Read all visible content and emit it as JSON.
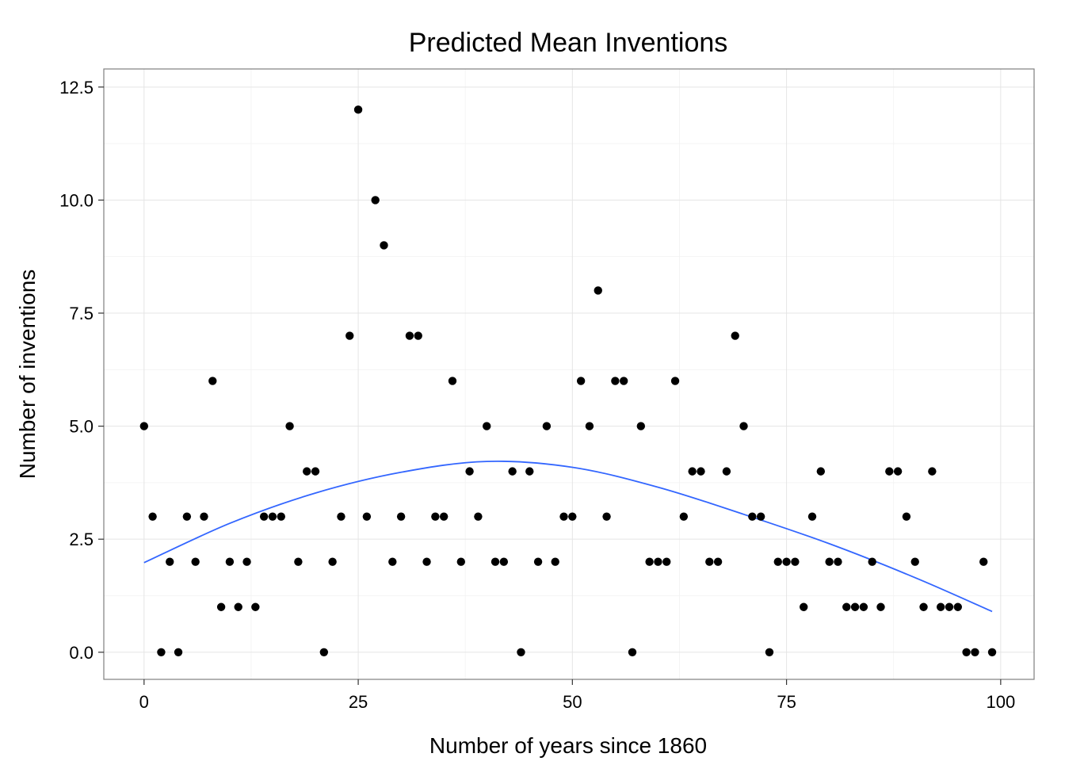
{
  "chart_data": {
    "type": "scatter",
    "title": "Predicted Mean Inventions",
    "xlabel": "Number of years since 1860",
    "ylabel": "Number of inventions",
    "xlim": [
      -4.7,
      103.9
    ],
    "ylim": [
      -0.6,
      12.9
    ],
    "xticks": [
      0,
      25,
      50,
      75,
      100
    ],
    "xtick_labels": [
      "0",
      "25",
      "50",
      "75",
      "100"
    ],
    "yticks": [
      0,
      2.5,
      5,
      7.5,
      10,
      12.5
    ],
    "ytick_labels": [
      "0.0",
      "2.5",
      "5.0",
      "7.5",
      "10.0",
      "12.5"
    ],
    "grid": true,
    "point_color": "#000000",
    "fit_color": "#3366ff",
    "x": [
      0,
      1,
      2,
      3,
      4,
      5,
      6,
      7,
      8,
      9,
      10,
      11,
      12,
      13,
      14,
      15,
      16,
      17,
      18,
      19,
      20,
      21,
      22,
      23,
      24,
      25,
      26,
      27,
      28,
      29,
      30,
      31,
      32,
      33,
      34,
      35,
      36,
      37,
      38,
      39,
      40,
      41,
      42,
      43,
      44,
      45,
      46,
      47,
      48,
      49,
      50,
      51,
      52,
      53,
      54,
      55,
      56,
      57,
      58,
      59,
      60,
      61,
      62,
      63,
      64,
      65,
      66,
      67,
      68,
      69,
      70,
      71,
      72,
      73,
      74,
      75,
      76,
      77,
      78,
      79,
      80,
      81,
      82,
      83,
      84,
      85,
      86,
      87,
      88,
      89,
      90,
      91,
      92,
      93,
      94,
      95,
      96,
      97,
      98,
      99
    ],
    "y": [
      5,
      3,
      0,
      2,
      0,
      3,
      2,
      3,
      6,
      1,
      2,
      1,
      2,
      1,
      3,
      3,
      3,
      5,
      2,
      4,
      4,
      0,
      2,
      3,
      7,
      12,
      3,
      10,
      9,
      2,
      3,
      7,
      7,
      2,
      3,
      3,
      6,
      2,
      4,
      3,
      5,
      2,
      2,
      4,
      0,
      4,
      2,
      5,
      2,
      3,
      3,
      6,
      5,
      8,
      3,
      6,
      6,
      0,
      5,
      2,
      2,
      2,
      6,
      3,
      4,
      4,
      2,
      2,
      4,
      7,
      5,
      3,
      3,
      0,
      2,
      2,
      2,
      1,
      3,
      4,
      2,
      2,
      1,
      1,
      1,
      2,
      1,
      4,
      4,
      3,
      2,
      1,
      4,
      1,
      1,
      1,
      0,
      0,
      2,
      0
    ],
    "fit": {
      "x": [
        0,
        10,
        20,
        30,
        40,
        50,
        60,
        70,
        80,
        90,
        99
      ],
      "y": [
        1.98,
        2.85,
        3.52,
        3.98,
        4.22,
        4.09,
        3.65,
        3.05,
        2.4,
        1.65,
        0.9
      ]
    }
  }
}
